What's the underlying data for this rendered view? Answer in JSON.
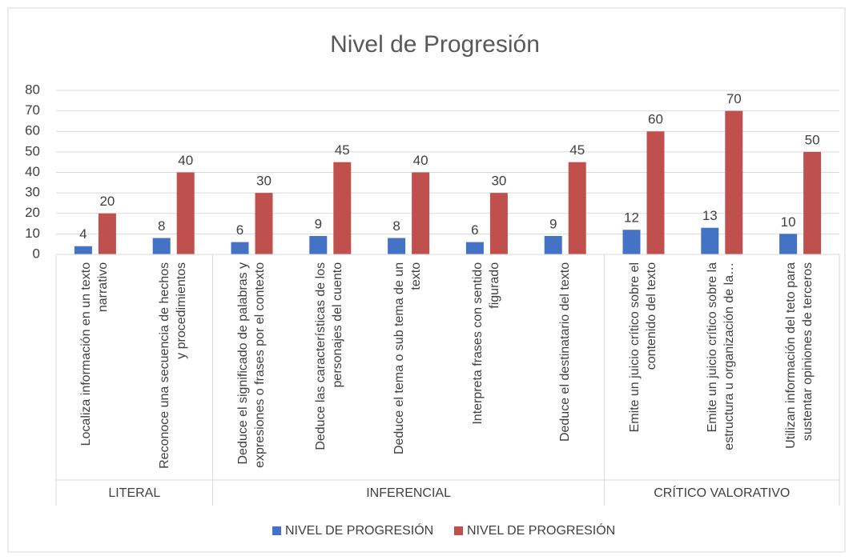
{
  "chart_data": {
    "type": "bar",
    "title": "Nivel de Progresión",
    "groups": [
      {
        "name": "LITERAL",
        "categories": [
          "Localiza información en un texto narrativo",
          "Reconoce una secuencia de hechos y procedimientos"
        ]
      },
      {
        "name": "INFERENCIAL",
        "categories": [
          "Deduce el significado de palabras y expresiones o frases por el contexto",
          "Deduce las características de los personajes del cuento",
          "Deduce el tema o sub tema de un texto",
          "Interpreta frases con sentido figurado",
          "Deduce el destinatario del texto"
        ]
      },
      {
        "name": "CRÍTICO VALORATIVO",
        "categories": [
          "Emite un juicio crítico sobre el contenido del texto",
          "Emite un juicio crítico sobre la estructura u organización de la…",
          "Utilizan información del teto para sustentar opiniones de terceros"
        ]
      }
    ],
    "series": [
      {
        "name": "NIVEL DE PROGRESIÓN",
        "color": "#4472c4",
        "values": [
          4,
          8,
          6,
          9,
          8,
          6,
          9,
          12,
          13,
          10
        ]
      },
      {
        "name": "NIVEL DE PROGRESIÓN",
        "color": "#c0504d",
        "values": [
          20,
          40,
          30,
          45,
          40,
          30,
          45,
          60,
          70,
          50
        ]
      }
    ],
    "ylim": [
      0,
      80
    ],
    "yticks": [
      0,
      10,
      20,
      30,
      40,
      50,
      60,
      70,
      80
    ],
    "grid": true,
    "legend": "bottom"
  }
}
